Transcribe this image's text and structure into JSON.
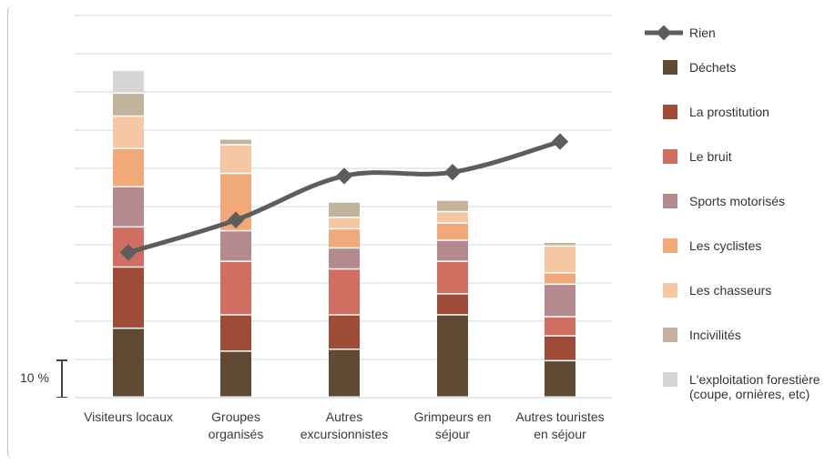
{
  "scale_label": "10 %",
  "chart_data": {
    "type": "bar",
    "stacked": true,
    "unit": "%",
    "categories": [
      "Visiteurs locaux",
      "Groupes\norganisés",
      "Autres\nexcursionnistes",
      "Grimpeurs en\nséjour",
      "Autres touristes\nen séjour"
    ],
    "series": [
      {
        "name": "Déchets",
        "color": "#614a33",
        "values": [
          18,
          12,
          12.5,
          21.5,
          9.5
        ]
      },
      {
        "name": "La prostitution",
        "color": "#9e4b38",
        "values": [
          16,
          9.5,
          9,
          5.5,
          6.5
        ]
      },
      {
        "name": "Le bruit",
        "color": "#cf6e61",
        "values": [
          10.5,
          14,
          12,
          8.5,
          5
        ]
      },
      {
        "name": "Sports motorisés",
        "color": "#b48a8e",
        "values": [
          10.5,
          8,
          5.5,
          5.5,
          8.5
        ]
      },
      {
        "name": "Les cyclistes",
        "color": "#f1a97a",
        "values": [
          10,
          15,
          5,
          4.5,
          3
        ]
      },
      {
        "name": "Les chasseurs",
        "color": "#f6c7a4",
        "values": [
          8.5,
          7.5,
          3,
          3,
          7
        ]
      },
      {
        "name": "Incivilités",
        "color": "#c1b49a",
        "values": [
          6,
          1.5,
          4,
          3,
          1
        ]
      },
      {
        "name": "L'exploitation forestière\n(coupe, ornières, etc)",
        "color": "#d7d5d5",
        "values": [
          6,
          0,
          0,
          0,
          0
        ]
      }
    ],
    "line_series": {
      "name": "Rien",
      "color": "#5d5d5d",
      "values": [
        38,
        46.5,
        58,
        59,
        67
      ]
    },
    "ylim": [
      0,
      100
    ],
    "grid": true,
    "legend_position": "right"
  }
}
